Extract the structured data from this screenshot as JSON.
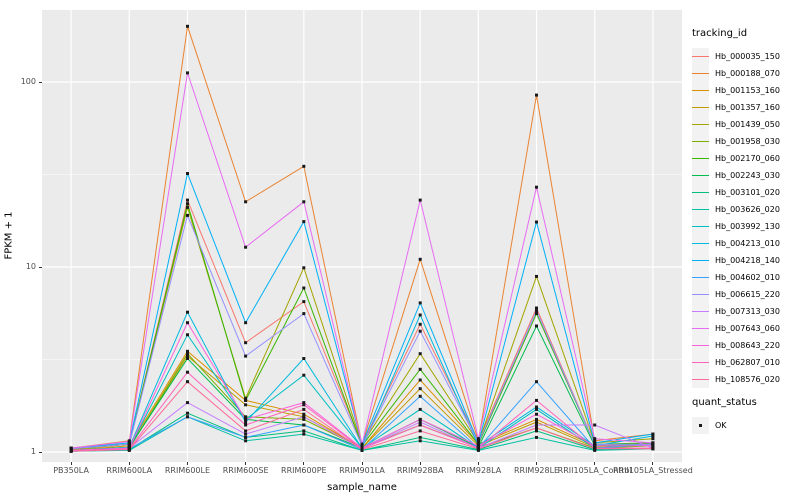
{
  "figure": {
    "background": "#FFFFFF"
  },
  "panel": {
    "background": "#EBEBEB",
    "grid_color": "#FFFFFF",
    "point_color": "#1A1A1A",
    "tick_color": "#333333",
    "tick_label_color": "#4D4D4D"
  },
  "axes": {
    "x": {
      "title": "sample_name"
    },
    "y": {
      "title": "FPKM + 1",
      "scale": "log10",
      "ticks": [
        {
          "label": "1",
          "value": 1
        },
        {
          "label": "10",
          "value": 10
        },
        {
          "label": "100",
          "value": 100
        }
      ]
    }
  },
  "legend": {
    "tracking_title": "tracking_id",
    "quant_title": "quant_status",
    "quant_items": [
      {
        "label": "OK",
        "shape": "black-square"
      }
    ]
  },
  "chart_data": {
    "type": "line",
    "title": "",
    "xlabel": "sample_name",
    "ylabel": "FPKM + 1",
    "yscale": "log10",
    "ylim": [
      0.9,
      245
    ],
    "grid": "major-and-minor-white-on-grey",
    "legend_position": "right",
    "point_shape": "filled-black-square (quant_status = OK)",
    "categories": [
      "PB350LA",
      "RRIM600LA",
      "RRIM600LE",
      "RRIM600SE",
      "RRIM600PE",
      "RRIM901LA",
      "RRIM928BA",
      "RRIM928LA",
      "RRIM928LE",
      "RRII105LA_Control",
      "RRII105LA_Stressed"
    ],
    "series": [
      {
        "name": "Hb_000035_150",
        "color": "#F8766D",
        "values": [
          1.05,
          1.1,
          23,
          3.9,
          6.5,
          1.1,
          4.9,
          1.15,
          6.0,
          1.1,
          1.1
        ]
      },
      {
        "name": "Hb_000188_070",
        "color": "#EA8331",
        "values": [
          1.05,
          1.15,
          200,
          22.5,
          35,
          1.1,
          11,
          1.15,
          85,
          1.15,
          1.25
        ]
      },
      {
        "name": "Hb_001153_160",
        "color": "#D89000",
        "values": [
          1.02,
          1.08,
          3.5,
          1.9,
          1.6,
          1.05,
          2.45,
          1.1,
          1.5,
          1.08,
          1.12
        ]
      },
      {
        "name": "Hb_001357_160",
        "color": "#C09B00",
        "values": [
          1.02,
          1.06,
          3.3,
          1.8,
          1.55,
          1.05,
          2.2,
          1.08,
          1.45,
          1.06,
          1.1
        ]
      },
      {
        "name": "Hb_001439_050",
        "color": "#A3A500",
        "values": [
          1.03,
          1.1,
          21,
          1.95,
          9.9,
          1.1,
          3.4,
          1.12,
          8.9,
          1.12,
          1.18
        ]
      },
      {
        "name": "Hb_001958_030",
        "color": "#7CAE00",
        "values": [
          1.02,
          1.05,
          3.4,
          1.55,
          1.5,
          1.05,
          1.4,
          1.06,
          1.35,
          1.05,
          1.08
        ]
      },
      {
        "name": "Hb_002170_060",
        "color": "#39B600",
        "values": [
          1.04,
          1.1,
          22,
          1.9,
          7.7,
          1.08,
          2.8,
          1.1,
          5.6,
          1.1,
          1.12
        ]
      },
      {
        "name": "Hb_002243_030",
        "color": "#00BB4E",
        "values": [
          1.02,
          1.06,
          3.2,
          1.5,
          1.4,
          1.05,
          1.5,
          1.06,
          4.8,
          1.08,
          1.1
        ]
      },
      {
        "name": "Hb_003101_020",
        "color": "#00BF7D",
        "values": [
          1.01,
          1.03,
          1.62,
          1.2,
          1.3,
          1.02,
          1.2,
          1.03,
          1.3,
          1.03,
          1.05
        ]
      },
      {
        "name": "Hb_003626_020",
        "color": "#00C1A3",
        "values": [
          1.01,
          1.02,
          1.55,
          1.15,
          1.25,
          1.02,
          1.15,
          1.02,
          1.2,
          1.02,
          1.04
        ]
      },
      {
        "name": "Hb_003992_130",
        "color": "#00BFC4",
        "values": [
          1.02,
          1.05,
          4.3,
          1.5,
          2.6,
          1.05,
          1.7,
          1.05,
          1.7,
          1.05,
          1.1
        ]
      },
      {
        "name": "Hb_004213_010",
        "color": "#00BAE0",
        "values": [
          1.02,
          1.06,
          5.7,
          1.45,
          3.2,
          1.05,
          5.5,
          1.08,
          1.75,
          1.08,
          1.22
        ]
      },
      {
        "name": "Hb_004218_140",
        "color": "#00B0F6",
        "values": [
          1.05,
          1.12,
          32,
          5.0,
          17.6,
          1.1,
          6.4,
          1.12,
          17.5,
          1.12,
          1.25
        ]
      },
      {
        "name": "Hb_004602_010",
        "color": "#35A2FF",
        "values": [
          1.01,
          1.04,
          1.55,
          1.2,
          1.4,
          1.03,
          2.0,
          1.05,
          2.4,
          1.05,
          1.1
        ]
      },
      {
        "name": "Hb_006615_220",
        "color": "#9590FF",
        "values": [
          1.04,
          1.1,
          19,
          3.3,
          5.6,
          1.08,
          4.5,
          1.12,
          5.8,
          1.1,
          1.1
        ]
      },
      {
        "name": "Hb_007313_030",
        "color": "#C77CFF",
        "values": [
          1.02,
          1.05,
          1.85,
          1.25,
          1.55,
          1.04,
          1.45,
          1.05,
          1.4,
          1.4,
          1.05
        ]
      },
      {
        "name": "Hb_007643_060",
        "color": "#E76BF3",
        "values": [
          1.05,
          1.14,
          112,
          12.8,
          22.5,
          1.1,
          23,
          1.18,
          27,
          1.18,
          1.12
        ]
      },
      {
        "name": "Hb_008643_220",
        "color": "#FA62DB",
        "values": [
          1.02,
          1.05,
          5.0,
          1.5,
          1.85,
          1.05,
          1.5,
          1.08,
          1.6,
          1.08,
          1.08
        ]
      },
      {
        "name": "Hb_062807_010",
        "color": "#FF62BC",
        "values": [
          1.02,
          1.04,
          2.7,
          1.4,
          1.8,
          1.04,
          1.4,
          1.05,
          1.9,
          1.05,
          1.05
        ]
      },
      {
        "name": "Hb_108576_020",
        "color": "#FF6A98",
        "values": [
          1.01,
          1.03,
          2.4,
          1.3,
          1.7,
          1.03,
          1.3,
          1.04,
          1.35,
          1.04,
          1.04
        ]
      }
    ]
  }
}
